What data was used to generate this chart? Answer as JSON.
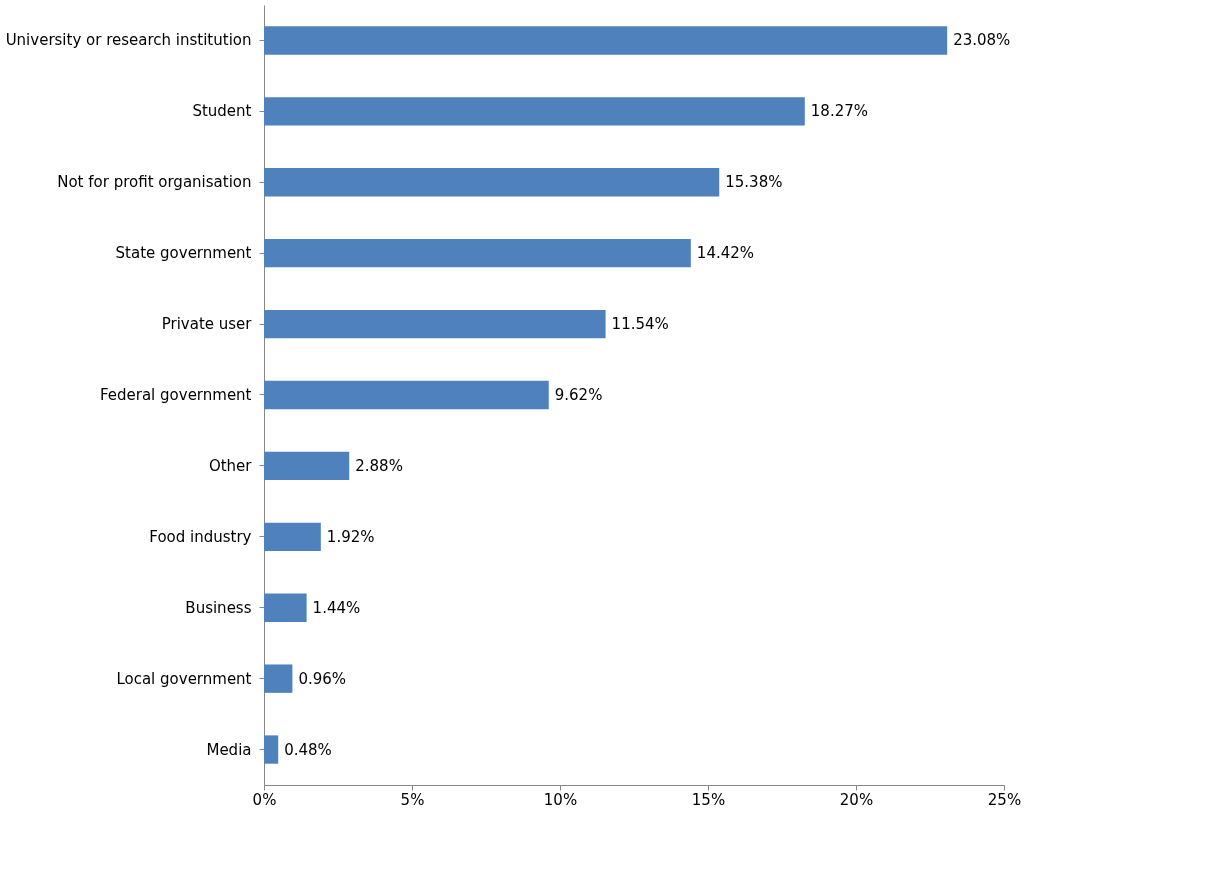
{
  "chart_data": {
    "type": "bar",
    "orientation": "horizontal",
    "categories": [
      "University or research institution",
      "Student",
      "Not for profit organisation",
      "State government",
      "Private user",
      "Federal government",
      "Other",
      "Food industry",
      "Business",
      "Local government",
      "Media"
    ],
    "values": [
      23.08,
      18.27,
      15.38,
      14.42,
      11.54,
      9.62,
      2.88,
      1.92,
      1.44,
      0.96,
      0.48
    ],
    "value_labels": [
      "23.08%",
      "18.27%",
      "15.38%",
      "14.42%",
      "11.54%",
      "9.62%",
      "2.88%",
      "1.92%",
      "1.44%",
      "0.96%",
      "0.48%"
    ],
    "color": "#4f81bd",
    "xlim": [
      0,
      25
    ],
    "xticks": [
      {
        "value": 0,
        "label": "0%"
      },
      {
        "value": 5,
        "label": "5%"
      },
      {
        "value": 10,
        "label": "10%"
      },
      {
        "value": 15,
        "label": "15%"
      },
      {
        "value": 20,
        "label": "20%"
      },
      {
        "value": 25,
        "label": "25%"
      }
    ],
    "grid": false
  }
}
